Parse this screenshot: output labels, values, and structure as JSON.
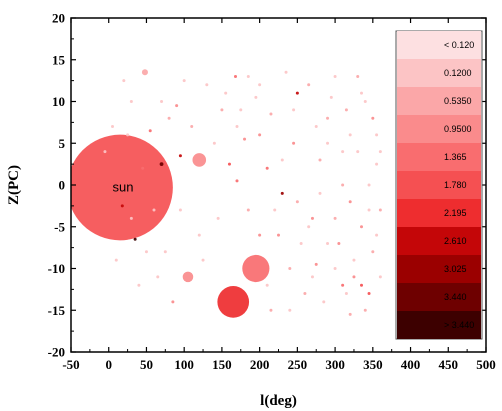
{
  "chart_data": {
    "type": "scatter",
    "title": "",
    "xlabel": "l(deg)",
    "ylabel": "Z(PC)",
    "xlim": [
      -50,
      500
    ],
    "ylim": [
      -20,
      20
    ],
    "x_ticks": [
      "-50",
      "0",
      "50",
      "100",
      "150",
      "200",
      "250",
      "300",
      "350",
      "400",
      "450",
      "500"
    ],
    "y_ticks": [
      "20",
      "15",
      "10",
      "5",
      "0",
      "-5",
      "-10",
      "-15",
      "-20"
    ],
    "annotation": {
      "text": "sun",
      "x": 5,
      "y": -0.2
    },
    "legend": {
      "placement": "right",
      "entries": [
        {
          "label": "< 0.120",
          "color": "#fde0e1"
        },
        {
          "label": "0.1200",
          "color": "#fcc4c5"
        },
        {
          "label": "0.5350",
          "color": "#fba7a8"
        },
        {
          "label": "0.9500",
          "color": "#fa8b8c"
        },
        {
          "label": "1.365",
          "color": "#f96d6f"
        },
        {
          "label": "1.780",
          "color": "#f55052"
        },
        {
          "label": "2.195",
          "color": "#ee2d2f"
        },
        {
          "label": "2.610",
          "color": "#c40608"
        },
        {
          "label": "3.025",
          "color": "#9b0000"
        },
        {
          "label": "3.440",
          "color": "#6e0000"
        },
        {
          "label": "> 3.440",
          "color": "#3d0000"
        }
      ]
    },
    "points": [
      {
        "x": 15,
        "y": -0.3,
        "r_deg": 70,
        "c": 5
      },
      {
        "x": 165,
        "y": -14,
        "r_deg": 21,
        "c": 6
      },
      {
        "x": 195,
        "y": -10,
        "r_deg": 18,
        "c": 4
      },
      {
        "x": 120,
        "y": 3,
        "r_deg": 9,
        "c": 3
      },
      {
        "x": 105,
        "y": -11,
        "r_deg": 7,
        "c": 3
      },
      {
        "x": 48,
        "y": 13.5,
        "r_deg": 4,
        "c": 2
      },
      {
        "x": 168,
        "y": 13,
        "r_deg": 2,
        "c": 4
      },
      {
        "x": 70,
        "y": 2.5,
        "r_deg": 2.5,
        "c": 9
      },
      {
        "x": 95,
        "y": 3.5,
        "r_deg": 2,
        "c": 7
      },
      {
        "x": 250,
        "y": 11,
        "r_deg": 2,
        "c": 7
      },
      {
        "x": 230,
        "y": -1,
        "r_deg": 2,
        "c": 8
      },
      {
        "x": 18,
        "y": -2.5,
        "r_deg": 2,
        "c": 7
      },
      {
        "x": 35,
        "y": -6.5,
        "r_deg": 2,
        "c": 10
      },
      {
        "x": 55,
        "y": 6.5,
        "r_deg": 1.7,
        "c": 4
      },
      {
        "x": 45,
        "y": 2,
        "r_deg": 1.8,
        "c": 4
      },
      {
        "x": 90,
        "y": 9.5,
        "r_deg": 1.5,
        "c": 3
      },
      {
        "x": 170,
        "y": 0.5,
        "r_deg": 2,
        "c": 4
      },
      {
        "x": 160,
        "y": 2.5,
        "r_deg": 1.6,
        "c": 5
      },
      {
        "x": 210,
        "y": 2,
        "r_deg": 1.5,
        "c": 4
      },
      {
        "x": 305,
        "y": -7,
        "r_deg": 1.6,
        "c": 3
      },
      {
        "x": 310,
        "y": -12,
        "r_deg": 1.8,
        "c": 4
      },
      {
        "x": 335,
        "y": -12,
        "r_deg": 1.5,
        "c": 5
      },
      {
        "x": 325,
        "y": -11,
        "r_deg": 1.5,
        "c": 3
      },
      {
        "x": 275,
        "y": -9.5,
        "r_deg": 1.5,
        "c": 3
      },
      {
        "x": 270,
        "y": -4,
        "r_deg": 1.4,
        "c": 3
      },
      {
        "x": 355,
        "y": 2.5,
        "r_deg": 1.2,
        "c": 1
      },
      {
        "x": 320,
        "y": -2,
        "r_deg": 1.2,
        "c": 3
      },
      {
        "x": 335,
        "y": -5,
        "r_deg": 1.1,
        "c": 3
      },
      {
        "x": 290,
        "y": 8,
        "r_deg": 1.0,
        "c": 2
      },
      {
        "x": 330,
        "y": 13,
        "r_deg": 1.0,
        "c": 2
      },
      {
        "x": 350,
        "y": 8,
        "r_deg": 1.0,
        "c": 3
      },
      {
        "x": 315,
        "y": 9,
        "r_deg": 0.9,
        "c": 2
      },
      {
        "x": 340,
        "y": -15,
        "r_deg": 1.0,
        "c": 2
      },
      {
        "x": 320,
        "y": -15.5,
        "r_deg": 0.9,
        "c": 2
      },
      {
        "x": 260,
        "y": -13,
        "r_deg": 1.1,
        "c": 2
      },
      {
        "x": 240,
        "y": -10,
        "r_deg": 1.0,
        "c": 2
      },
      {
        "x": 225,
        "y": -6,
        "r_deg": 1.0,
        "c": 3
      },
      {
        "x": 200,
        "y": 6,
        "r_deg": 1.0,
        "c": 3
      },
      {
        "x": 215,
        "y": 8.5,
        "r_deg": 0.9,
        "c": 2
      },
      {
        "x": 150,
        "y": 9,
        "r_deg": 0.9,
        "c": 2
      },
      {
        "x": 180,
        "y": 5.5,
        "r_deg": 0.9,
        "c": 3
      },
      {
        "x": 345,
        "y": -13,
        "r_deg": 0.9,
        "c": 5
      },
      {
        "x": 300,
        "y": -4,
        "r_deg": 0.9,
        "c": 2
      },
      {
        "x": 280,
        "y": 3,
        "r_deg": 0.8,
        "c": 2
      },
      {
        "x": 360,
        "y": -3,
        "r_deg": 0.8,
        "c": 2
      },
      {
        "x": 245,
        "y": 5,
        "r_deg": 0.8,
        "c": 3
      },
      {
        "x": 265,
        "y": 12,
        "r_deg": 0.7,
        "c": 2
      },
      {
        "x": 130,
        "y": 12,
        "r_deg": 0.7,
        "c": 1
      },
      {
        "x": 110,
        "y": 7,
        "r_deg": 0.8,
        "c": 2
      },
      {
        "x": 80,
        "y": 8,
        "r_deg": 0.8,
        "c": 2
      },
      {
        "x": 30,
        "y": 10,
        "r_deg": 0.8,
        "c": 1
      },
      {
        "x": 60,
        "y": -3,
        "r_deg": 0.8,
        "c": 1
      },
      {
        "x": 75,
        "y": -8,
        "r_deg": 0.8,
        "c": 1
      },
      {
        "x": 85,
        "y": -14,
        "r_deg": 1.0,
        "c": 3
      },
      {
        "x": 215,
        "y": -15,
        "r_deg": 0.9,
        "c": 2
      },
      {
        "x": 185,
        "y": -3,
        "r_deg": 0.8,
        "c": 2
      },
      {
        "x": 200,
        "y": -6,
        "r_deg": 0.8,
        "c": 3
      },
      {
        "x": 250,
        "y": -2,
        "r_deg": 0.7,
        "c": 2
      },
      {
        "x": 285,
        "y": -14,
        "r_deg": 0.7,
        "c": 1
      },
      {
        "x": 300,
        "y": 13,
        "r_deg": 0.7,
        "c": 1
      },
      {
        "x": 355,
        "y": 6,
        "r_deg": 0.7,
        "c": 1
      },
      {
        "x": 350,
        "y": -8,
        "r_deg": 0.7,
        "c": 2
      },
      {
        "x": 360,
        "y": -11,
        "r_deg": 0.7,
        "c": 1
      },
      {
        "x": 330,
        "y": 4,
        "r_deg": 0.7,
        "c": 1
      },
      {
        "x": 310,
        "y": 0,
        "r_deg": 0.6,
        "c": 2
      },
      {
        "x": 290,
        "y": -7,
        "r_deg": 0.6,
        "c": 1
      },
      {
        "x": 235,
        "y": 13.5,
        "r_deg": 0.6,
        "c": 1
      },
      {
        "x": 195,
        "y": 10.5,
        "r_deg": 0.6,
        "c": 1
      },
      {
        "x": 170,
        "y": 7,
        "r_deg": 0.6,
        "c": 1
      },
      {
        "x": 140,
        "y": 5,
        "r_deg": 0.6,
        "c": 1
      },
      {
        "x": 25,
        "y": 6,
        "r_deg": 0.6,
        "c": 1
      },
      {
        "x": 40,
        "y": -12,
        "r_deg": 0.6,
        "c": 1
      },
      {
        "x": 10,
        "y": -9,
        "r_deg": 0.6,
        "c": 1
      },
      {
        "x": -5,
        "y": 4,
        "r_deg": 0.6,
        "c": 1
      },
      {
        "x": 65,
        "y": -11,
        "r_deg": 0.6,
        "c": 1
      },
      {
        "x": 120,
        "y": -6,
        "r_deg": 0.6,
        "c": 1
      },
      {
        "x": 145,
        "y": -4,
        "r_deg": 0.6,
        "c": 1
      },
      {
        "x": 255,
        "y": -7,
        "r_deg": 0.6,
        "c": 1
      },
      {
        "x": 275,
        "y": 7,
        "r_deg": 0.6,
        "c": 1
      },
      {
        "x": 320,
        "y": 6,
        "r_deg": 0.6,
        "c": 1
      },
      {
        "x": 340,
        "y": 10,
        "r_deg": 0.6,
        "c": 1
      },
      {
        "x": 345,
        "y": 0,
        "r_deg": 0.6,
        "c": 1
      },
      {
        "x": 300,
        "y": -10,
        "r_deg": 0.6,
        "c": 1
      },
      {
        "x": 270,
        "y": -11,
        "r_deg": 0.6,
        "c": 1
      },
      {
        "x": 230,
        "y": 3,
        "r_deg": 0.6,
        "c": 1
      },
      {
        "x": 220,
        "y": -3,
        "r_deg": 0.6,
        "c": 1
      },
      {
        "x": 185,
        "y": 13,
        "r_deg": 0.6,
        "c": 1
      },
      {
        "x": 155,
        "y": 11,
        "r_deg": 0.5,
        "c": 1
      },
      {
        "x": 100,
        "y": 12.5,
        "r_deg": 0.5,
        "c": 1
      },
      {
        "x": 70,
        "y": 10,
        "r_deg": 0.5,
        "c": 1
      },
      {
        "x": 20,
        "y": 12.5,
        "r_deg": 0.5,
        "c": 1
      },
      {
        "x": 5,
        "y": 7,
        "r_deg": 0.5,
        "c": 1
      },
      {
        "x": 30,
        "y": -4,
        "r_deg": 0.5,
        "c": 1
      },
      {
        "x": 50,
        "y": -8,
        "r_deg": 0.5,
        "c": 1
      },
      {
        "x": 95,
        "y": -3,
        "r_deg": 0.5,
        "c": 1
      },
      {
        "x": 125,
        "y": -9,
        "r_deg": 0.5,
        "c": 1
      },
      {
        "x": 280,
        "y": -1,
        "r_deg": 0.5,
        "c": 1
      },
      {
        "x": 310,
        "y": 4,
        "r_deg": 0.5,
        "c": 1
      },
      {
        "x": 325,
        "y": -9,
        "r_deg": 0.5,
        "c": 1
      },
      {
        "x": 355,
        "y": -6,
        "r_deg": 0.5,
        "c": 1
      },
      {
        "x": 335,
        "y": 11,
        "r_deg": 0.5,
        "c": 1
      },
      {
        "x": 295,
        "y": 10.5,
        "r_deg": 0.5,
        "c": 1
      },
      {
        "x": 245,
        "y": 9,
        "r_deg": 0.5,
        "c": 1
      },
      {
        "x": 210,
        "y": -12,
        "r_deg": 0.5,
        "c": 1
      },
      {
        "x": 240,
        "y": -15,
        "r_deg": 0.5,
        "c": 1
      },
      {
        "x": 265,
        "y": -5,
        "r_deg": 0.5,
        "c": 1
      },
      {
        "x": 345,
        "y": -3,
        "r_deg": 0.5,
        "c": 1
      },
      {
        "x": 315,
        "y": -13,
        "r_deg": 0.5,
        "c": 1
      },
      {
        "x": 360,
        "y": 4,
        "r_deg": 0.5,
        "c": 1
      },
      {
        "x": 290,
        "y": 5,
        "r_deg": 0.5,
        "c": 1
      },
      {
        "x": 200,
        "y": 12,
        "r_deg": 0.5,
        "c": 1
      },
      {
        "x": 175,
        "y": 9,
        "r_deg": 0.5,
        "c": 1
      }
    ]
  }
}
